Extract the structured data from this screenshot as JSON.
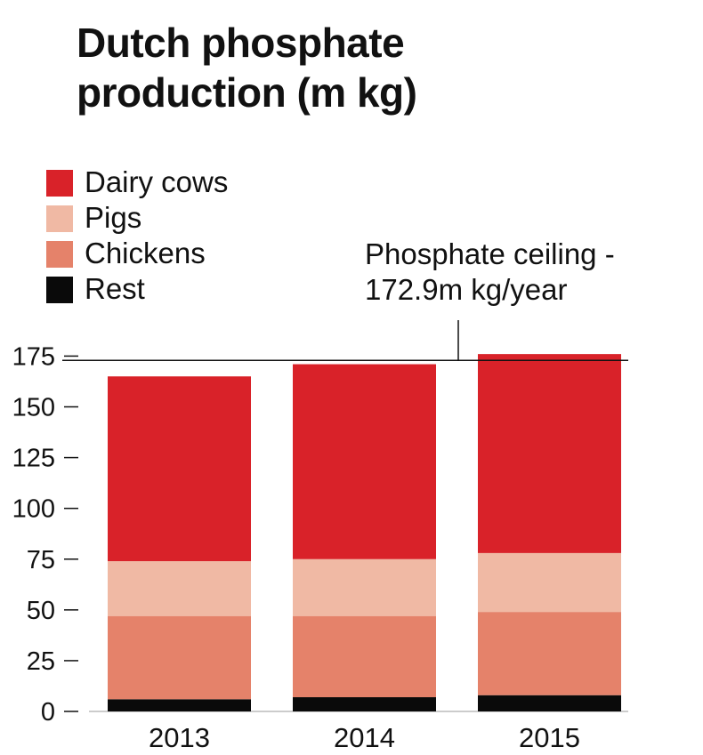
{
  "chart_data": {
    "type": "bar",
    "stacked": true,
    "title": "Dutch phosphate production (m kg)",
    "categories": [
      "2013",
      "2014",
      "2015"
    ],
    "series": [
      {
        "name": "Rest",
        "color": "#0a0a0a",
        "values": [
          6,
          7,
          8
        ]
      },
      {
        "name": "Chickens",
        "color": "#e5826a",
        "values": [
          41,
          40,
          41
        ]
      },
      {
        "name": "Pigs",
        "color": "#f0b9a4",
        "values": [
          27,
          28,
          29
        ]
      },
      {
        "name": "Dairy cows",
        "color": "#d92229",
        "values": [
          91,
          96,
          98
        ]
      }
    ],
    "totals": [
      165,
      171,
      176
    ],
    "ylim": [
      0,
      180
    ],
    "yticks": [
      0,
      25,
      50,
      75,
      100,
      125,
      150,
      175
    ],
    "reference_line": {
      "value": 172.9,
      "label_line1": "Phosphate ceiling -",
      "label_line2": "172.9m kg/year"
    },
    "legend": [
      {
        "label": "Dairy cows",
        "color": "#d92229"
      },
      {
        "label": "Pigs",
        "color": "#f0b9a4"
      },
      {
        "label": "Chickens",
        "color": "#e5826a"
      },
      {
        "label": "Rest",
        "color": "#0a0a0a"
      }
    ],
    "legend_position": "top-left",
    "grid": false
  }
}
